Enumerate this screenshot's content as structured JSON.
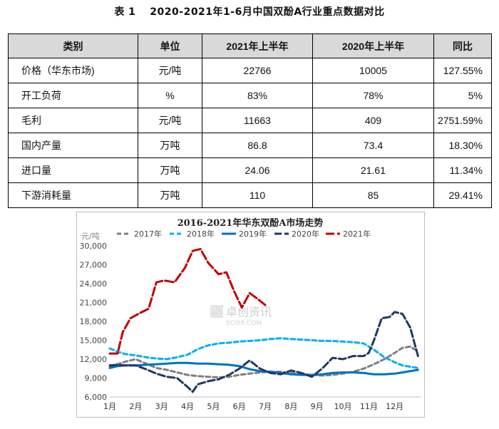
{
  "table": {
    "caption": "表 1　 2020-2021年1-6月中国双酚A行业重点数据对比",
    "headers": [
      "类别",
      "单位",
      "2021年上半年",
      "2020年上半年",
      "同比"
    ],
    "rows": [
      [
        "价格（华东市场)",
        "元/吨",
        "22766",
        "10005",
        "127.55%"
      ],
      [
        "开工负荷",
        "%",
        "83%",
        "78%",
        "5%"
      ],
      [
        "毛利",
        "元/吨",
        "11663",
        "409",
        "2751.59%"
      ],
      [
        "国内产量",
        "万吨",
        "86.8",
        "73.4",
        "18.30%"
      ],
      [
        "进口量",
        "万吨",
        "24.06",
        "21.61",
        "11.34%"
      ],
      [
        "下游消耗量",
        "万吨",
        "110",
        "85",
        "29.41%"
      ]
    ]
  },
  "chart_data": {
    "type": "line",
    "title": "2016-2021年华东双酚A市场走势",
    "ylabel": "元/吨",
    "ylim": [
      6000,
      30000
    ],
    "yticks": [
      "6,000",
      "9,000",
      "12,000",
      "15,000",
      "18,000",
      "21,000",
      "24,000",
      "27,000",
      "30,000"
    ],
    "ytick_values": [
      6000,
      9000,
      12000,
      15000,
      18000,
      21000,
      24000,
      27000,
      30000
    ],
    "xlim": [
      1,
      13
    ],
    "categories": [
      "1月",
      "2月",
      "3月",
      "4月",
      "5月",
      "6月",
      "7月",
      "8月",
      "9月",
      "10月",
      "11月",
      "12月"
    ],
    "watermark": "卓创资讯",
    "watermark_sub": "SCI99.COM",
    "series": [
      {
        "name": "2017年",
        "color": "#7f7f7f",
        "dash": "6,4",
        "x": [
          1,
          1.3,
          1.6,
          2,
          2.4,
          2.8,
          3.2,
          3.6,
          4,
          4.4,
          4.8,
          5.2,
          5.6,
          6,
          6.4,
          6.8,
          7.2,
          7.6,
          8,
          8.4,
          8.8,
          9.2,
          9.6,
          10,
          10.4,
          10.8,
          11.2,
          11.6,
          12,
          12.3,
          12.6,
          12.8
        ],
        "values": [
          10800,
          11200,
          11600,
          12000,
          11300,
          10600,
          10300,
          9900,
          9500,
          9300,
          9200,
          9100,
          9200,
          9500,
          9700,
          9900,
          10000,
          10000,
          9800,
          9600,
          9500,
          9400,
          9500,
          9700,
          10000,
          10500,
          11200,
          12000,
          13000,
          13800,
          14000,
          13500
        ]
      },
      {
        "name": "2018年",
        "color": "#00b0f0",
        "dash": "6,4",
        "x": [
          1,
          1.3,
          1.6,
          2,
          2.4,
          2.8,
          3.2,
          3.6,
          4,
          4.4,
          4.8,
          5.2,
          5.6,
          6,
          6.4,
          6.8,
          7.2,
          7.6,
          8,
          8.4,
          8.8,
          9.2,
          9.6,
          10,
          10.4,
          10.8,
          11.2,
          11.6,
          12,
          12.3,
          12.6,
          12.9
        ],
        "values": [
          13700,
          13200,
          12800,
          12600,
          12300,
          12100,
          12000,
          12300,
          12700,
          13600,
          14200,
          14500,
          14600,
          14800,
          14900,
          15000,
          15200,
          15300,
          15200,
          15100,
          15000,
          14900,
          14900,
          14800,
          14700,
          14500,
          13500,
          12300,
          11500,
          11000,
          10800,
          10600
        ]
      },
      {
        "name": "2019年",
        "color": "#0070c0",
        "dash": "",
        "x": [
          1,
          1.3,
          1.6,
          2,
          2.4,
          2.8,
          3.2,
          3.6,
          4,
          4.4,
          4.8,
          5.2,
          5.6,
          6,
          6.4,
          6.8,
          7.2,
          7.6,
          8,
          8.4,
          8.8,
          9.2,
          9.6,
          10,
          10.4,
          10.8,
          11.2,
          11.6,
          12,
          12.3,
          12.6,
          12.9
        ],
        "values": [
          10600,
          10900,
          11000,
          11000,
          11100,
          11200,
          11300,
          11400,
          11400,
          11300,
          11300,
          11200,
          11100,
          10900,
          10400,
          10100,
          10000,
          9800,
          9600,
          9500,
          9500,
          9600,
          9800,
          9900,
          9900,
          9800,
          9600,
          9600,
          9700,
          9900,
          10100,
          10300
        ]
      },
      {
        "name": "2020年",
        "color": "#1f3864",
        "dash": "10,4",
        "x": [
          1,
          1.3,
          1.6,
          2,
          2.4,
          2.8,
          3.2,
          3.6,
          4,
          4.2,
          4.4,
          4.8,
          5.2,
          5.6,
          6,
          6.4,
          6.8,
          7.2,
          7.6,
          8,
          8.4,
          8.8,
          9.2,
          9.6,
          10,
          10.4,
          10.8,
          11,
          11.2,
          11.5,
          11.8,
          12,
          12.3,
          12.6,
          12.9
        ],
        "values": [
          11000,
          11100,
          11000,
          11000,
          10400,
          9700,
          9200,
          9000,
          7600,
          6800,
          8000,
          8500,
          8800,
          9500,
          10500,
          11800,
          10500,
          9800,
          9600,
          10200,
          9800,
          9200,
          10500,
          12200,
          12000,
          12500,
          12500,
          13000,
          15000,
          18500,
          18700,
          19500,
          19200,
          17000,
          12500
        ]
      },
      {
        "name": "2021年",
        "color": "#c00000",
        "dash": "12,4",
        "x": [
          1,
          1.3,
          1.5,
          1.8,
          2.2,
          2.5,
          2.8,
          3.1,
          3.5,
          3.9,
          4.2,
          4.5,
          4.8,
          5.2,
          5.5,
          5.8,
          6.1,
          6.4,
          6.7,
          7
        ],
        "values": [
          12900,
          12900,
          16300,
          18500,
          19400,
          20000,
          24200,
          24500,
          24200,
          26500,
          29200,
          29500,
          27300,
          25500,
          25800,
          22800,
          20200,
          22500,
          21600,
          20600
        ]
      }
    ]
  }
}
